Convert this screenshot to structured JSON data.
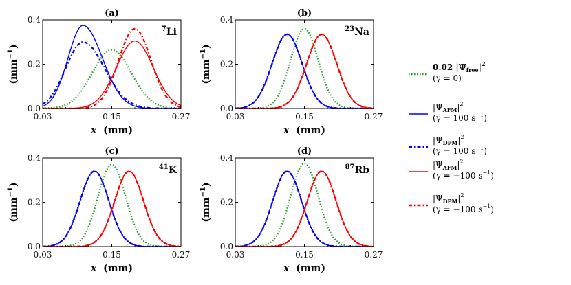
{
  "chart_data": [
    {
      "type": "line",
      "panel_label": "(a)",
      "element": {
        "mass": "7",
        "symbol": "Li"
      },
      "xlabel_var": "x",
      "xlabel_unit": "(mm)",
      "ylabel": "(mm",
      "ylabel_exp": "−1",
      "ylabel_close": ")",
      "xlim": [
        0.03,
        0.27
      ],
      "ylim": [
        0.0,
        0.4
      ],
      "xticks": [
        0.03,
        0.15,
        0.27
      ],
      "xtick_labels": [
        "0.03",
        "0.15",
        "0.27"
      ],
      "yticks": [
        0.0,
        0.2,
        0.4
      ],
      "ytick_labels": [
        "0.0",
        "0.2",
        "0.4"
      ],
      "series": [
        {
          "name": "free",
          "color": "#2ca02c",
          "style": "dotted",
          "center": 0.15,
          "sigma": 0.034,
          "amp": 0.265,
          "skew": 0
        },
        {
          "name": "afm_pos",
          "color": "#0000ff",
          "style": "solid",
          "center": 0.1,
          "sigma": 0.026,
          "amp": 0.375,
          "skew": 0.6
        },
        {
          "name": "dpm_pos",
          "color": "#0000ff",
          "style": "dashdot",
          "center": 0.1,
          "sigma": 0.03,
          "amp": 0.3,
          "skew": 0.5
        },
        {
          "name": "afm_neg",
          "color": "#ff0000",
          "style": "solid",
          "center": 0.19,
          "sigma": 0.032,
          "amp": 0.305,
          "skew": 0
        },
        {
          "name": "dpm_neg",
          "color": "#ff0000",
          "style": "dashdot",
          "center": 0.19,
          "sigma": 0.028,
          "amp": 0.36,
          "skew": 0
        }
      ]
    },
    {
      "type": "line",
      "panel_label": "(b)",
      "element": {
        "mass": "23",
        "symbol": "Na"
      },
      "xlabel_var": "x",
      "xlabel_unit": "(mm)",
      "ylabel": "(mm",
      "ylabel_exp": "−1",
      "ylabel_close": ")",
      "xlim": [
        0.03,
        0.27
      ],
      "ylim": [
        0.0,
        0.4
      ],
      "xticks": [
        0.03,
        0.15,
        0.27
      ],
      "xtick_labels": [
        "0.03",
        "0.15",
        "0.27"
      ],
      "yticks": [
        0.0,
        0.2,
        0.4
      ],
      "ytick_labels": [
        "0.0",
        "0.2",
        "0.4"
      ],
      "series": [
        {
          "name": "free",
          "color": "#2ca02c",
          "style": "dotted",
          "center": 0.15,
          "sigma": 0.024,
          "amp": 0.36,
          "skew": 0
        },
        {
          "name": "afm_pos",
          "color": "#0000ff",
          "style": "solid",
          "center": 0.12,
          "sigma": 0.026,
          "amp": 0.335,
          "skew": 0
        },
        {
          "name": "dpm_pos",
          "color": "#0000ff",
          "style": "dashdot",
          "center": 0.12,
          "sigma": 0.026,
          "amp": 0.335,
          "skew": 0
        },
        {
          "name": "afm_neg",
          "color": "#ff0000",
          "style": "solid",
          "center": 0.18,
          "sigma": 0.026,
          "amp": 0.335,
          "skew": 0
        },
        {
          "name": "dpm_neg",
          "color": "#ff0000",
          "style": "dashdot",
          "center": 0.18,
          "sigma": 0.026,
          "amp": 0.335,
          "skew": 0
        }
      ]
    },
    {
      "type": "line",
      "panel_label": "(c)",
      "element": {
        "mass": "41",
        "symbol": "K"
      },
      "xlabel_var": "x",
      "xlabel_unit": "(mm)",
      "ylabel": "(mm",
      "ylabel_exp": "−1",
      "ylabel_close": ")",
      "xlim": [
        0.03,
        0.27
      ],
      "ylim": [
        0.0,
        0.4
      ],
      "xticks": [
        0.03,
        0.15,
        0.27
      ],
      "xtick_labels": [
        "0.03",
        "0.15",
        "0.27"
      ],
      "yticks": [
        0.0,
        0.2,
        0.4
      ],
      "ytick_labels": [
        "0.0",
        "0.2",
        "0.4"
      ],
      "series": [
        {
          "name": "free",
          "color": "#2ca02c",
          "style": "dotted",
          "center": 0.15,
          "sigma": 0.024,
          "amp": 0.37,
          "skew": 0
        },
        {
          "name": "afm_pos",
          "color": "#0000ff",
          "style": "solid",
          "center": 0.12,
          "sigma": 0.025,
          "amp": 0.34,
          "skew": 0
        },
        {
          "name": "dpm_pos",
          "color": "#0000ff",
          "style": "dashdot",
          "center": 0.12,
          "sigma": 0.025,
          "amp": 0.34,
          "skew": 0
        },
        {
          "name": "afm_neg",
          "color": "#ff0000",
          "style": "solid",
          "center": 0.18,
          "sigma": 0.025,
          "amp": 0.34,
          "skew": 0
        },
        {
          "name": "dpm_neg",
          "color": "#ff0000",
          "style": "dashdot",
          "center": 0.18,
          "sigma": 0.025,
          "amp": 0.34,
          "skew": 0
        }
      ]
    },
    {
      "type": "line",
      "panel_label": "(d)",
      "element": {
        "mass": "87",
        "symbol": "Rb"
      },
      "xlabel_var": "x",
      "xlabel_unit": "(mm)",
      "ylabel": "(mm",
      "ylabel_exp": "−1",
      "ylabel_close": ")",
      "xlim": [
        0.03,
        0.27
      ],
      "ylim": [
        0.0,
        0.4
      ],
      "xticks": [
        0.03,
        0.15,
        0.27
      ],
      "xtick_labels": [
        "0.03",
        "0.15",
        "0.27"
      ],
      "yticks": [
        0.0,
        0.2,
        0.4
      ],
      "ytick_labels": [
        "0.0",
        "0.2",
        "0.4"
      ],
      "series": [
        {
          "name": "free",
          "color": "#2ca02c",
          "style": "dotted",
          "center": 0.15,
          "sigma": 0.024,
          "amp": 0.375,
          "skew": 0
        },
        {
          "name": "afm_pos",
          "color": "#0000ff",
          "style": "solid",
          "center": 0.12,
          "sigma": 0.025,
          "amp": 0.34,
          "skew": 0
        },
        {
          "name": "dpm_pos",
          "color": "#0000ff",
          "style": "dashdot",
          "center": 0.12,
          "sigma": 0.025,
          "amp": 0.34,
          "skew": 0
        },
        {
          "name": "afm_neg",
          "color": "#ff0000",
          "style": "solid",
          "center": 0.18,
          "sigma": 0.025,
          "amp": 0.34,
          "skew": 0
        },
        {
          "name": "dpm_neg",
          "color": "#ff0000",
          "style": "dashdot",
          "center": 0.18,
          "sigma": 0.025,
          "amp": 0.34,
          "skew": 0
        }
      ]
    }
  ],
  "legend": [
    {
      "series": "free",
      "color": "#2ca02c",
      "style": "dotted",
      "line1": {
        "prefix": "0.02 |Ψ",
        "sub": "free",
        "suffix": "|",
        "sup": "2"
      },
      "line2": "(γ = 0)"
    },
    {
      "series": "afm_pos",
      "color": "#0000ff",
      "style": "solid",
      "line1": {
        "prefix": "|Ψ",
        "sub": "AFM",
        "suffix": "|",
        "sup": "2"
      },
      "line2": {
        "text": "(γ = 100 s",
        "sup": "−1",
        "close": ")"
      }
    },
    {
      "series": "dpm_pos",
      "color": "#0000ff",
      "style": "dashdot",
      "line1": {
        "prefix": "|Ψ",
        "sub": "DPM",
        "suffix": "|",
        "sup": "2"
      },
      "line2": {
        "text": "(γ = 100 s",
        "sup": "−1",
        "close": ")"
      }
    },
    {
      "series": "afm_neg",
      "color": "#ff0000",
      "style": "solid",
      "line1": {
        "prefix": "|Ψ",
        "sub": "AFM",
        "suffix": "|",
        "sup": "2"
      },
      "line2": {
        "text": "(γ = −100 s",
        "sup": "−1",
        "close": ")"
      }
    },
    {
      "series": "dpm_neg",
      "color": "#ff0000",
      "style": "dashdot",
      "line1": {
        "prefix": "|Ψ",
        "sub": "DPM",
        "suffix": "|",
        "sup": "2"
      },
      "line2": {
        "text": "(γ = −100 s",
        "sup": "−1",
        "close": ")"
      }
    }
  ]
}
